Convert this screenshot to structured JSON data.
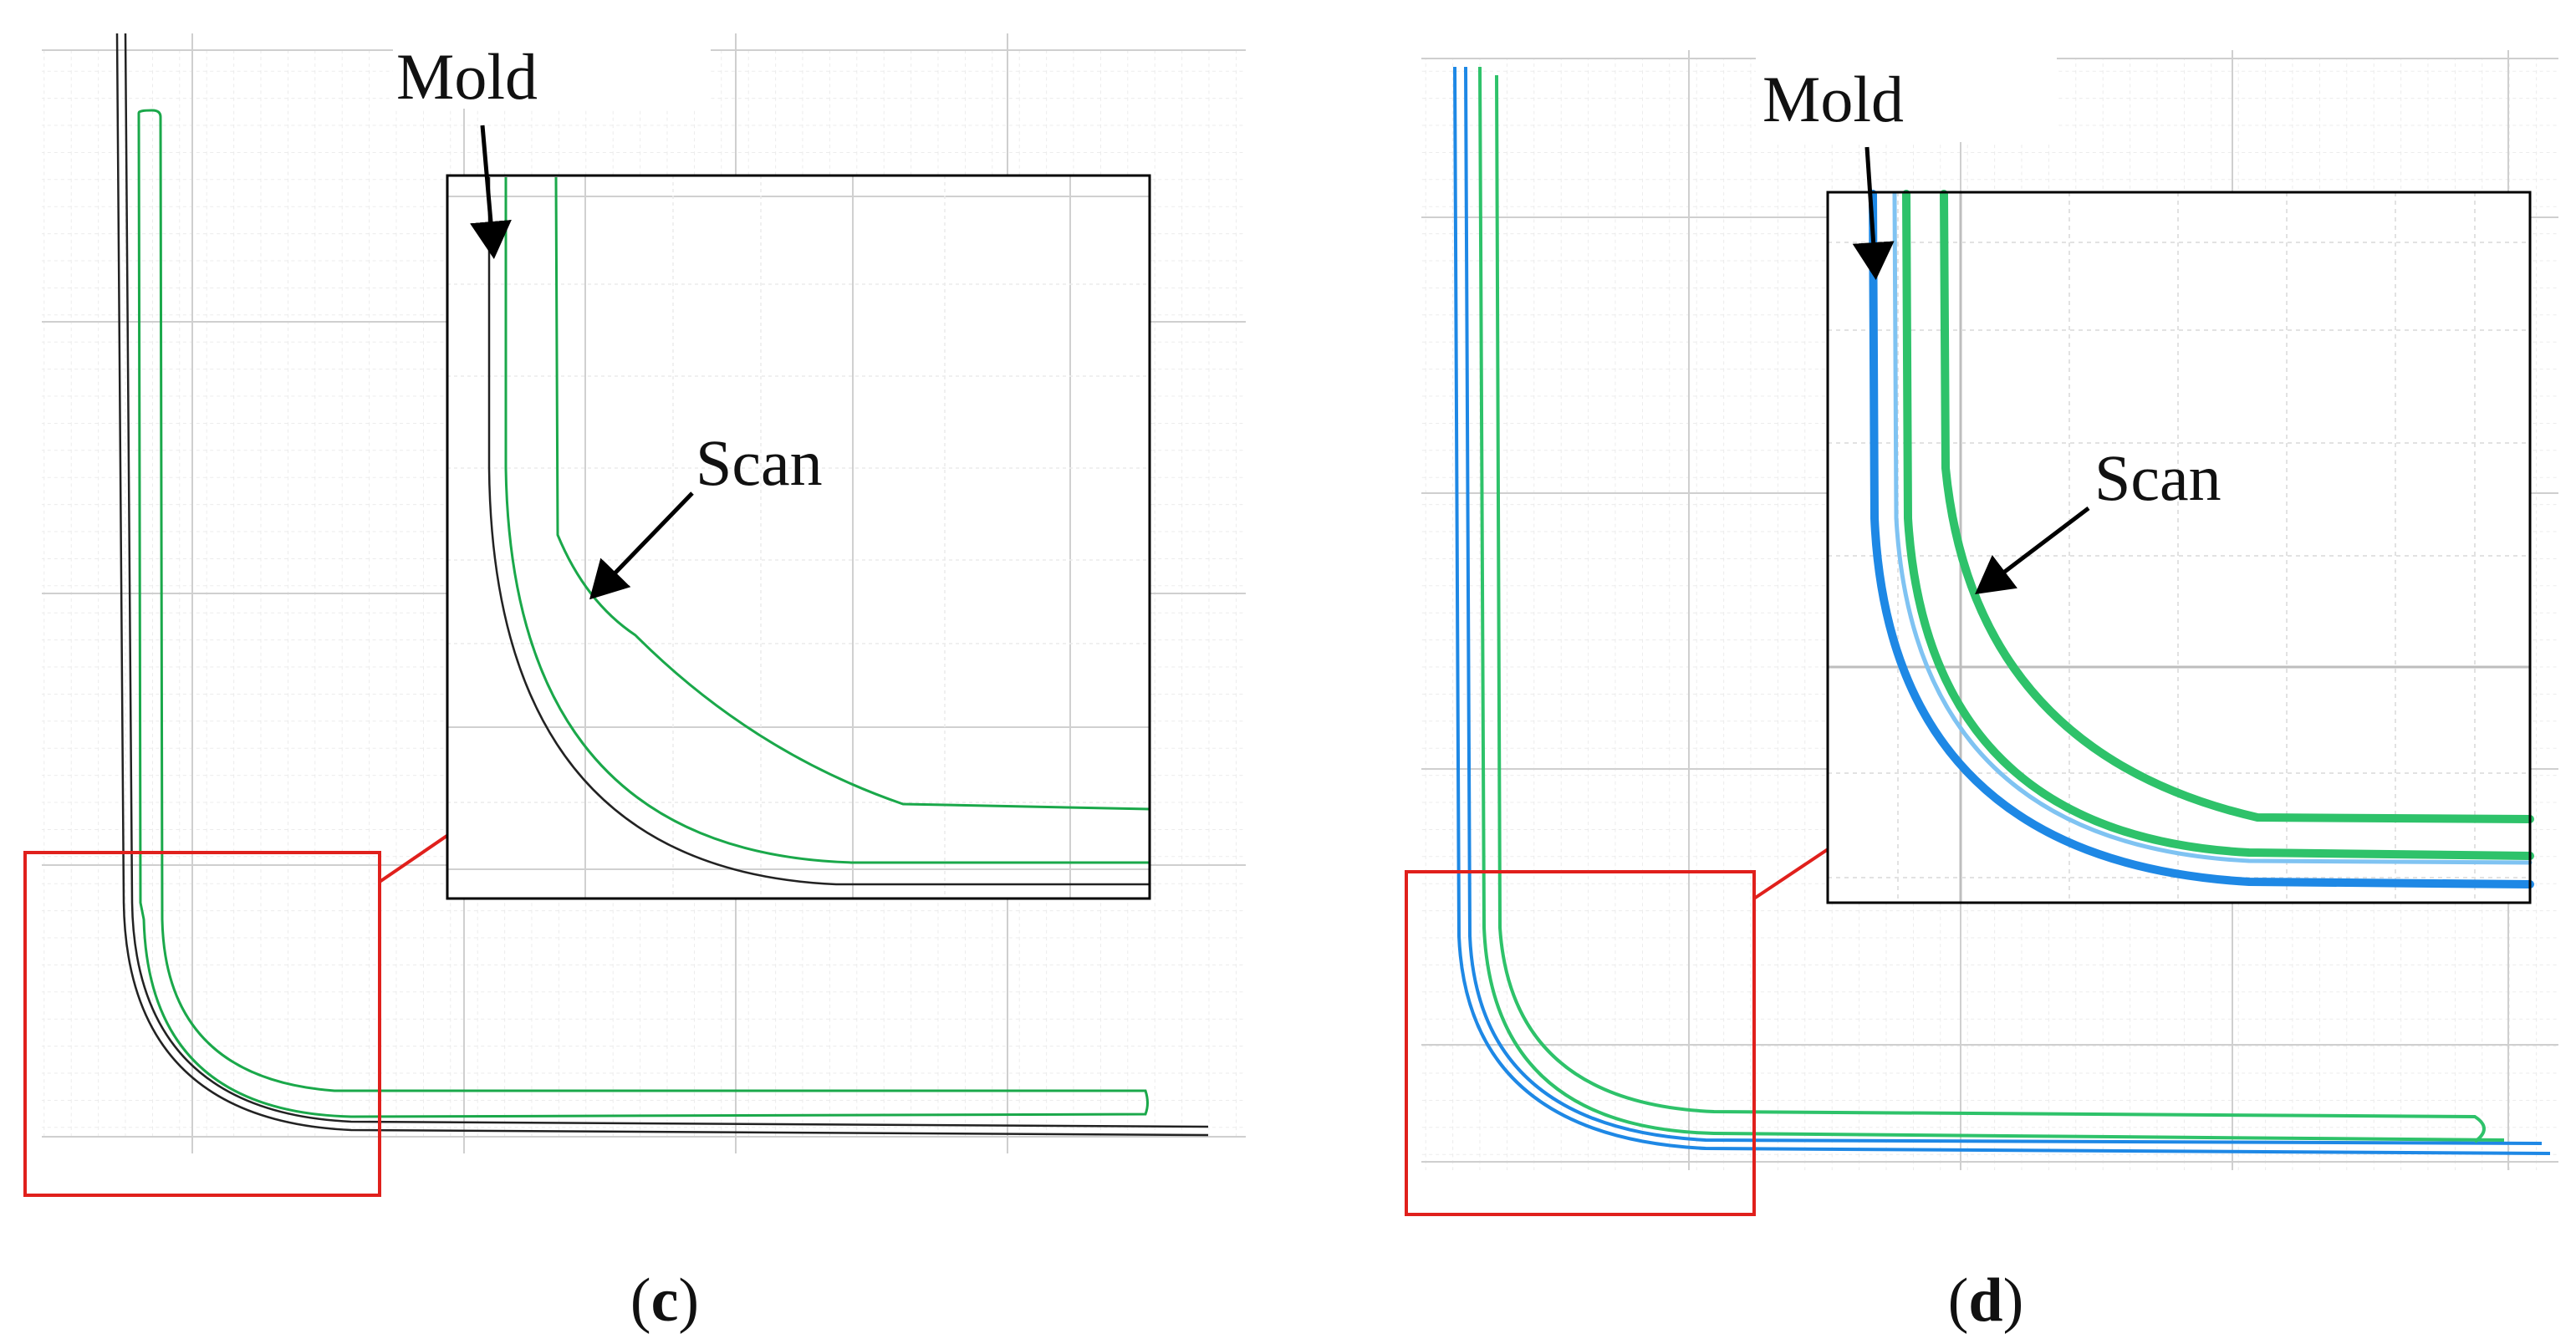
{
  "panels": [
    {
      "id": "c",
      "caption_open": "(",
      "caption_letter": "c",
      "caption_close": ")",
      "mold_label": "Mold",
      "scan_label": "Scan",
      "mold_color": "#222222",
      "scan_color": "#1aa84a"
    },
    {
      "id": "d",
      "caption_open": "(",
      "caption_letter": "d",
      "caption_close": ")",
      "mold_label": "Mold",
      "scan_label": "Scan",
      "mold_color": "#1e88e5",
      "scan_color": "#2ec26a"
    }
  ],
  "colors": {
    "zoom_box": "#e0201c",
    "grid_minor": "#e4e4e4",
    "grid_major": "#c8c8c8",
    "inset_frame": "#000000"
  }
}
